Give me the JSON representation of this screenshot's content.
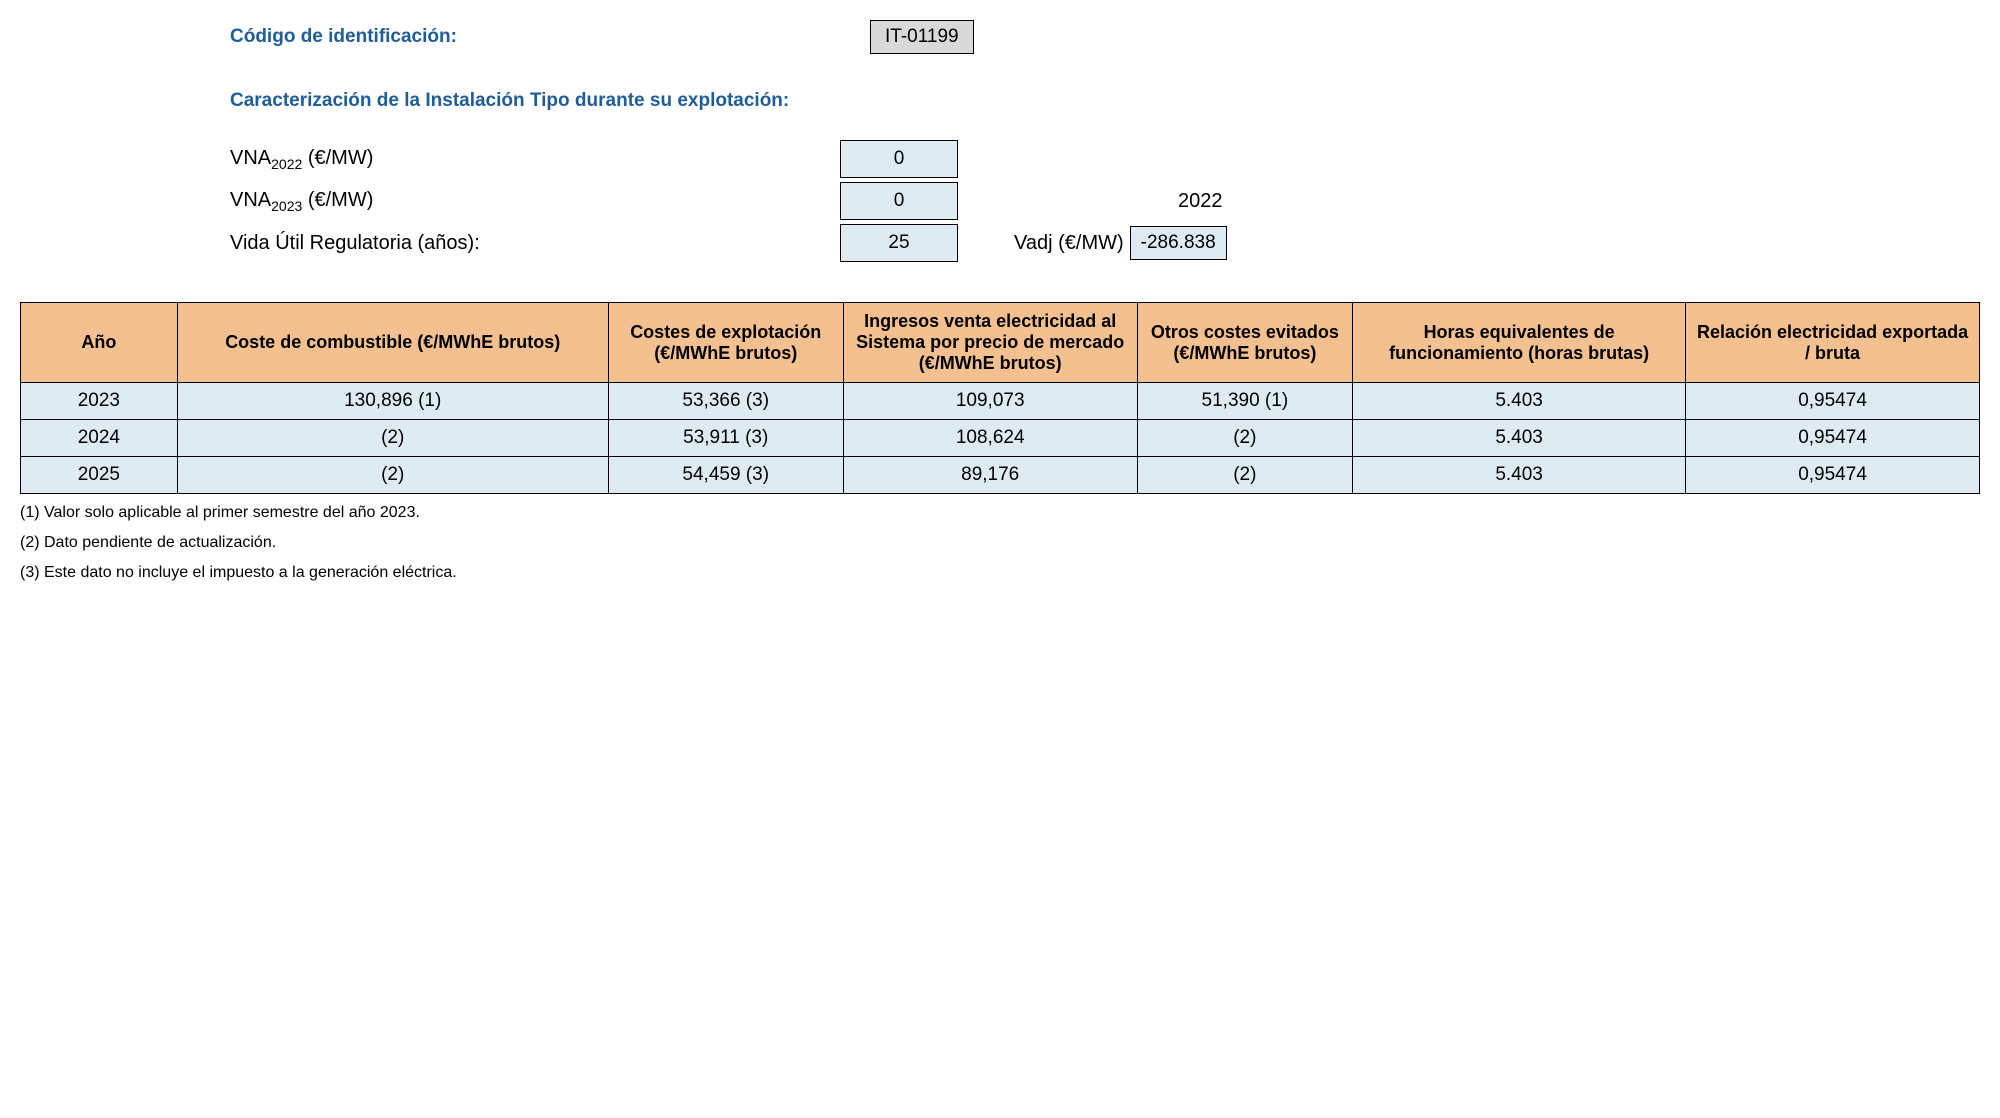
{
  "header": {
    "id_label": "Código de identificación:",
    "id_code": "IT-01199",
    "section_title": "Caracterización de la Instalación Tipo durante su explotación:"
  },
  "params": {
    "vna_2022_label_prefix": "VNA",
    "vna_2022_sub": "2022",
    "vna_2022_unit": " (€/MW)",
    "vna_2022_value": "0",
    "vna_2023_label_prefix": "VNA",
    "vna_2023_sub": "2023",
    "vna_2023_unit": " (€/MW)",
    "vna_2023_value": "0",
    "extra_year": "2022",
    "vida_util_label": "Vida Útil Regulatoria (años):",
    "vida_util_value": "25",
    "vadj_label": "Vadj (€/MW)",
    "vadj_value": "-286.838"
  },
  "table": {
    "columns": [
      "Año",
      "Coste de combustible (€/MWhE brutos)",
      "Costes de explotación (€/MWhE brutos)",
      "Ingresos venta electricidad al Sistema por precio de mercado (€/MWhE brutos)",
      "Otros costes evitados (€/MWhE brutos)",
      "Horas equivalentes de funcionamiento (horas brutas)",
      "Relación electricidad exportada / bruta"
    ],
    "rows": [
      [
        "2023",
        "130,896 (1)",
        "53,366 (3)",
        "109,073",
        "51,390 (1)",
        "5.403",
        "0,95474"
      ],
      [
        "2024",
        "(2)",
        "53,911 (3)",
        "108,624",
        "(2)",
        "5.403",
        "0,95474"
      ],
      [
        "2025",
        "(2)",
        "54,459 (3)",
        "89,176",
        "(2)",
        "5.403",
        "0,95474"
      ]
    ]
  },
  "footnotes": [
    "(1) Valor solo aplicable al primer semestre del año 2023.",
    "(2) Dato pendiente de actualización.",
    "(3) Este dato no incluye el impuesto a la generación eléctrica."
  ],
  "colors": {
    "header_bg": "#f4c090",
    "cell_bg": "#deebf3",
    "id_box_bg": "#d9d9d9",
    "title_color": "#1f5d99",
    "border": "#000000",
    "page_bg": "#ffffff"
  }
}
